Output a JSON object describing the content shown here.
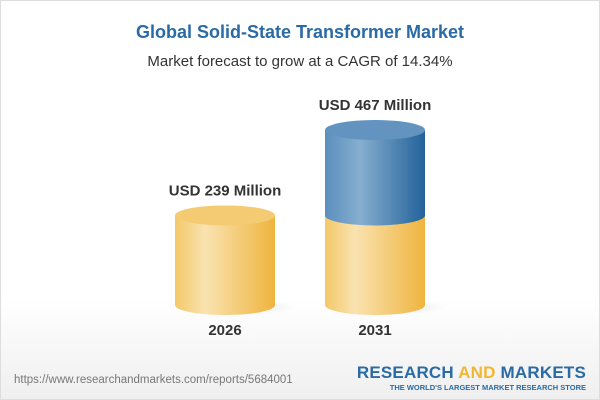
{
  "header": {
    "title": "Global Solid-State Transformer Market",
    "subtitle": "Market forecast to grow at a CAGR of 14.34%"
  },
  "chart_data": {
    "type": "bar",
    "style": "3d-cylinder",
    "title": "Global Solid-State Transformer Market",
    "subtitle": "Market forecast to grow at a CAGR of 14.34%",
    "categories": [
      "2026",
      "2031"
    ],
    "values": [
      239,
      467
    ],
    "unit": "USD Million",
    "data_labels": [
      "USD 239 Million",
      "USD 467 Million"
    ],
    "cagr_percent": 14.34,
    "grid": false,
    "colors": {
      "base": "#f2c55a",
      "growth": "#3f77a8"
    }
  },
  "footer": {
    "url": "https://www.researchandmarkets.com/reports/5684001",
    "logo_part1": "RESEARCH ",
    "logo_part2": "AND",
    "logo_part3": " MARKETS",
    "tagline": "THE WORLD'S LARGEST MARKET RESEARCH STORE"
  }
}
